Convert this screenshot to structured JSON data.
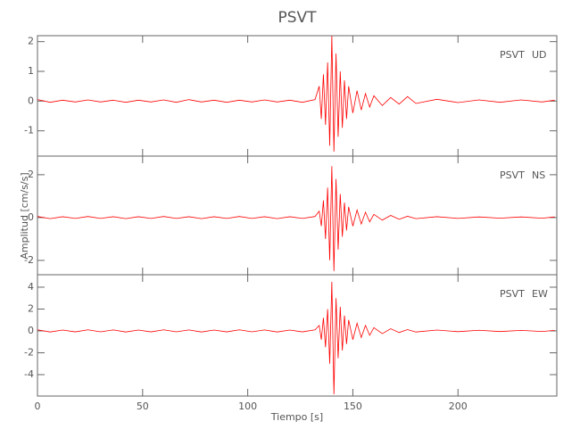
{
  "title": "PSVT",
  "x_label": "Tiempo [s]",
  "y_label": "Amplitud [cm/s/s]",
  "chart_data": [
    {
      "type": "line",
      "station": "PSVT",
      "component": "UD",
      "x": [
        0,
        6,
        12,
        18,
        24,
        30,
        36,
        42,
        48,
        54,
        60,
        66,
        72,
        78,
        84,
        90,
        96,
        102,
        108,
        114,
        120,
        126,
        132,
        134,
        135,
        136,
        137,
        138,
        139,
        140,
        141,
        142,
        143,
        144,
        145,
        146,
        147,
        148,
        150,
        152,
        154,
        156,
        158,
        160,
        164,
        168,
        172,
        176,
        180,
        190,
        200,
        210,
        220,
        230,
        240,
        246
      ],
      "series": [
        {
          "name": "UD",
          "color": "#ff0000",
          "values": [
            0.05,
            -0.04,
            0.03,
            -0.03,
            0.04,
            -0.03,
            0.03,
            -0.04,
            0.03,
            -0.03,
            0.04,
            -0.04,
            0.05,
            -0.03,
            0.03,
            -0.04,
            0.03,
            -0.03,
            0.04,
            -0.03,
            0.03,
            -0.04,
            0.05,
            0.5,
            -0.6,
            0.9,
            -0.8,
            1.3,
            -1.5,
            2.2,
            -1.7,
            1.6,
            -1.2,
            1.0,
            -0.9,
            0.7,
            -0.6,
            0.5,
            -0.4,
            0.35,
            -0.3,
            0.25,
            -0.2,
            0.18,
            -0.15,
            0.12,
            -0.1,
            0.15,
            -0.08,
            0.06,
            -0.05,
            0.04,
            -0.04,
            0.04,
            -0.03,
            0.03
          ]
        }
      ],
      "xlim": [
        0,
        247
      ],
      "xticks": [
        0,
        50,
        100,
        150,
        200
      ],
      "ylim": [
        -1.85,
        2.2
      ],
      "yticks": [
        -1,
        0,
        1,
        2
      ]
    },
    {
      "type": "line",
      "station": "PSVT",
      "component": "NS",
      "x": [
        0,
        6,
        12,
        18,
        24,
        30,
        36,
        42,
        48,
        54,
        60,
        66,
        72,
        78,
        84,
        90,
        96,
        102,
        108,
        114,
        120,
        126,
        132,
        134,
        135,
        136,
        137,
        138,
        139,
        140,
        141,
        142,
        143,
        144,
        145,
        146,
        147,
        148,
        150,
        152,
        154,
        156,
        158,
        160,
        164,
        168,
        172,
        176,
        180,
        190,
        200,
        210,
        220,
        230,
        240,
        246
      ],
      "series": [
        {
          "name": "NS",
          "color": "#ff0000",
          "values": [
            0.05,
            -0.05,
            0.04,
            -0.04,
            0.05,
            -0.04,
            0.04,
            -0.05,
            0.04,
            -0.04,
            0.05,
            -0.04,
            0.04,
            -0.05,
            0.04,
            -0.04,
            0.05,
            -0.04,
            0.04,
            -0.05,
            0.04,
            -0.04,
            0.05,
            0.3,
            -0.4,
            0.8,
            -1.0,
            1.4,
            -2.0,
            2.4,
            -2.5,
            1.8,
            -1.5,
            1.1,
            -0.9,
            0.7,
            -0.6,
            0.5,
            -0.4,
            0.35,
            -0.3,
            0.25,
            -0.2,
            0.15,
            -0.12,
            0.1,
            -0.08,
            0.06,
            -0.05,
            0.04,
            -0.04,
            0.03,
            -0.03,
            0.03,
            -0.03,
            0.03
          ]
        }
      ],
      "xlim": [
        0,
        247
      ],
      "xticks": [
        0,
        50,
        100,
        150,
        200
      ],
      "ylim": [
        -2.67,
        2.87
      ],
      "yticks": [
        -2,
        0,
        2
      ]
    },
    {
      "type": "line",
      "station": "PSVT",
      "component": "EW",
      "x": [
        0,
        6,
        12,
        18,
        24,
        30,
        36,
        42,
        48,
        54,
        60,
        66,
        72,
        78,
        84,
        90,
        96,
        102,
        108,
        114,
        120,
        126,
        132,
        134,
        135,
        136,
        137,
        138,
        139,
        140,
        141,
        142,
        143,
        144,
        145,
        146,
        147,
        148,
        150,
        152,
        154,
        156,
        158,
        160,
        164,
        168,
        172,
        176,
        180,
        190,
        200,
        210,
        220,
        230,
        240,
        246
      ],
      "series": [
        {
          "name": "EW",
          "color": "#ff0000",
          "values": [
            0.1,
            -0.1,
            0.08,
            -0.09,
            0.1,
            -0.08,
            0.09,
            -0.1,
            0.08,
            -0.09,
            0.1,
            -0.08,
            0.09,
            -0.1,
            0.08,
            -0.09,
            0.1,
            -0.08,
            0.09,
            -0.1,
            0.08,
            -0.09,
            0.1,
            0.5,
            -0.8,
            1.2,
            -1.5,
            2.0,
            -3.0,
            4.5,
            -5.8,
            3.0,
            -2.5,
            2.2,
            -1.8,
            1.4,
            -1.2,
            1.0,
            -0.8,
            0.7,
            -0.6,
            0.5,
            -0.4,
            0.3,
            -0.25,
            0.2,
            -0.15,
            0.12,
            -0.1,
            0.08,
            -0.07,
            0.06,
            -0.06,
            0.05,
            -0.05,
            0.05
          ]
        }
      ],
      "xlim": [
        0,
        247
      ],
      "xticks": [
        0,
        50,
        100,
        150,
        200
      ],
      "ylim": [
        -5.96,
        5.14
      ],
      "yticks": [
        -4,
        -2,
        0,
        2,
        4
      ]
    }
  ]
}
